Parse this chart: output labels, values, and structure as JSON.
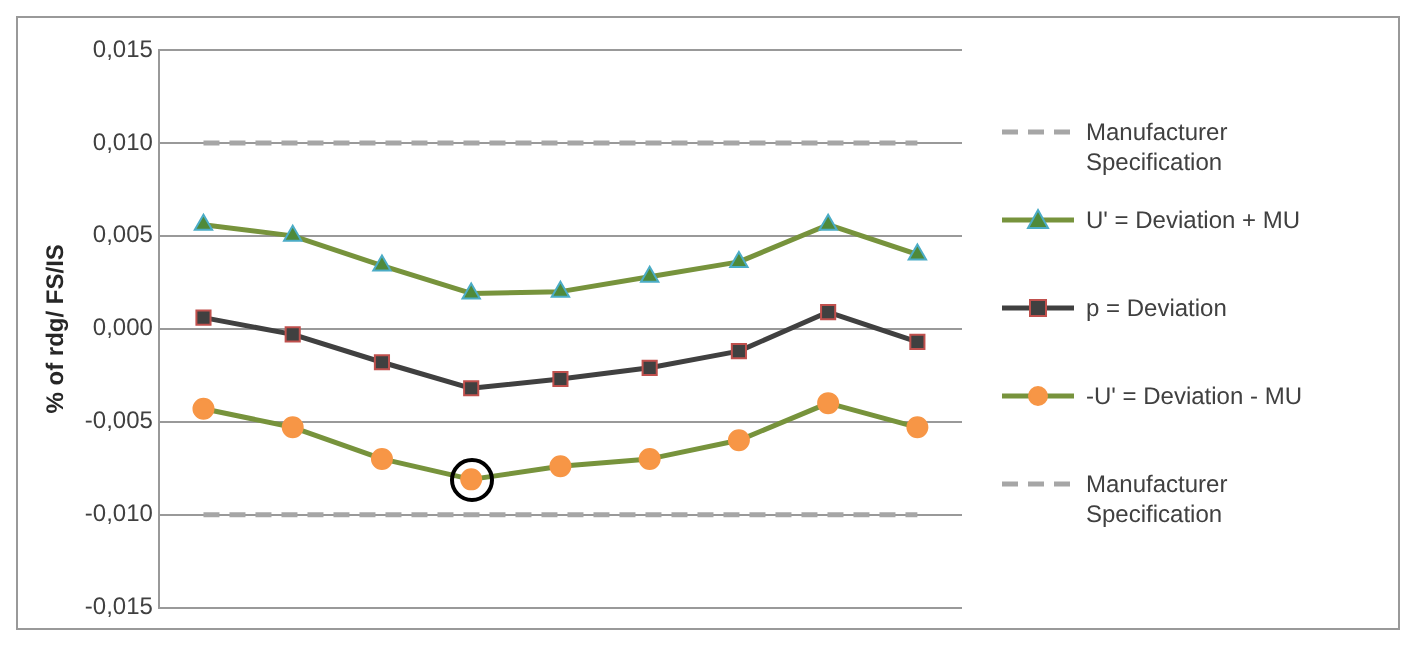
{
  "chart_data": {
    "type": "line",
    "ylabel": "% of rdg/ FS/IS",
    "categories": [
      null,
      null,
      null,
      null,
      null,
      null,
      null,
      null,
      null
    ],
    "ylim": [
      -0.015,
      0.015
    ],
    "yticks": [
      {
        "value": -0.015,
        "label": "-0,015"
      },
      {
        "value": -0.01,
        "label": "-0,010"
      },
      {
        "value": -0.005,
        "label": "-0,005"
      },
      {
        "value": 0,
        "label": "0,000"
      },
      {
        "value": 0.005,
        "label": "0,005"
      },
      {
        "value": 0.01,
        "label": "0,010"
      },
      {
        "value": 0.015,
        "label": "0,015"
      }
    ],
    "grid": "y",
    "legend": "right",
    "tick_labels": "y",
    "series": [
      {
        "name": "Manufacturer Specification",
        "color": "#a6a6a6",
        "line_style": "dashed",
        "marker": "none",
        "values": [
          0.01,
          0.01,
          0.01,
          0.01,
          0.01,
          0.01,
          0.01,
          0.01,
          0.01
        ]
      },
      {
        "name": "U' = Deviation + MU",
        "color": "#77933c",
        "marker": "triangle",
        "values": [
          0.0056,
          0.005,
          0.0034,
          0.0019,
          0.002,
          0.0028,
          0.0036,
          0.0056,
          0.004
        ]
      },
      {
        "name": "p = Deviation",
        "color": "#404040",
        "marker": "square",
        "values": [
          0.0006,
          -0.0003,
          -0.0018,
          -0.0032,
          -0.0027,
          -0.0021,
          -0.0012,
          0.0009,
          -0.0007
        ]
      },
      {
        "name": "-U' = Deviation - MU",
        "color": "#77933c",
        "marker": "circle",
        "values": [
          -0.0043,
          -0.0053,
          -0.007,
          -0.0081,
          -0.0074,
          -0.007,
          -0.006,
          -0.004,
          -0.0053
        ]
      },
      {
        "name": "Manufacturer Specification",
        "color": "#a6a6a6",
        "line_style": "dashed",
        "marker": "none",
        "values": [
          -0.01,
          -0.01,
          -0.01,
          -0.01,
          -0.01,
          -0.01,
          -0.01,
          -0.01,
          -0.01
        ]
      }
    ]
  }
}
